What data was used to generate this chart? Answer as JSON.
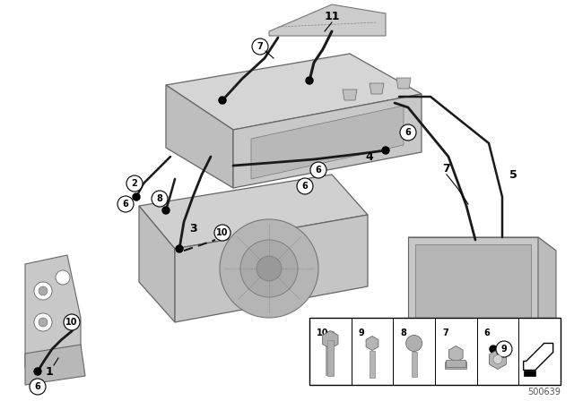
{
  "bg_color": "#ffffff",
  "diagram_number": "500639",
  "component_fill": "#d8d8d8",
  "component_edge": "#888888",
  "cable_color": "#1a1a1a",
  "label_color": "#000000"
}
